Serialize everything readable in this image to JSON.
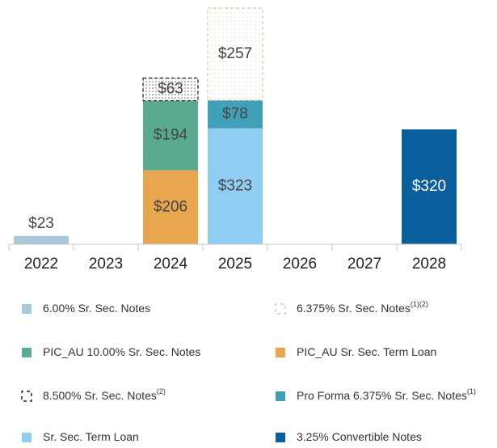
{
  "chart_data": {
    "type": "bar",
    "stacked": true,
    "categories": [
      "2022",
      "2023",
      "2024",
      "2025",
      "2026",
      "2027",
      "2028"
    ],
    "series": [
      {
        "name": "6.00% Sr. Sec. Notes",
        "color": "#a9c9d8",
        "values": [
          23,
          null,
          null,
          null,
          null,
          null,
          null
        ],
        "value_labels": [
          "$23",
          null,
          null,
          null,
          null,
          null,
          null
        ]
      },
      {
        "name": "PIC_AU Sr. Sec. Term Loan",
        "color": "#e8a64f",
        "values": [
          null,
          null,
          206,
          null,
          null,
          null,
          null
        ],
        "value_labels": [
          null,
          null,
          "$206",
          null,
          null,
          null,
          null
        ]
      },
      {
        "name": "PIC_AU 10.00% Sr. Sec. Notes",
        "color": "#5aaa90",
        "values": [
          null,
          null,
          194,
          null,
          null,
          null,
          null
        ],
        "value_labels": [
          null,
          null,
          "$194",
          null,
          null,
          null,
          null
        ]
      },
      {
        "name": "8.500% Sr. Sec. Notes",
        "footnote": "(2)",
        "color": "#222222",
        "outline": true,
        "values": [
          null,
          null,
          63,
          null,
          null,
          null,
          null
        ],
        "value_labels": [
          null,
          null,
          "$63",
          null,
          null,
          null,
          null
        ]
      },
      {
        "name": "Sr. Sec. Term Loan",
        "color": "#8fcdf2",
        "values": [
          null,
          null,
          null,
          323,
          null,
          null,
          null
        ],
        "value_labels": [
          null,
          null,
          null,
          "$323",
          null,
          null,
          null
        ]
      },
      {
        "name": "Pro Forma 6.375% Sr. Sec. Notes",
        "footnote": "(1)",
        "color": "#3fa0b8",
        "values": [
          null,
          null,
          null,
          78,
          null,
          null,
          null
        ],
        "value_labels": [
          null,
          null,
          null,
          "$78",
          null,
          null,
          null
        ]
      },
      {
        "name": "6.375% Sr. Sec. Notes",
        "footnote": "(1)(2)",
        "color": "#d8ccaa",
        "outline": true,
        "values": [
          null,
          null,
          null,
          257,
          null,
          null,
          null
        ],
        "value_labels": [
          null,
          null,
          null,
          "$257",
          null,
          null,
          null
        ]
      },
      {
        "name": "3.25% Convertible Notes",
        "color": "#0b5f9c",
        "values": [
          null,
          null,
          null,
          null,
          null,
          null,
          320
        ],
        "value_labels": [
          null,
          null,
          null,
          null,
          null,
          null,
          "$320"
        ]
      }
    ]
  }
}
